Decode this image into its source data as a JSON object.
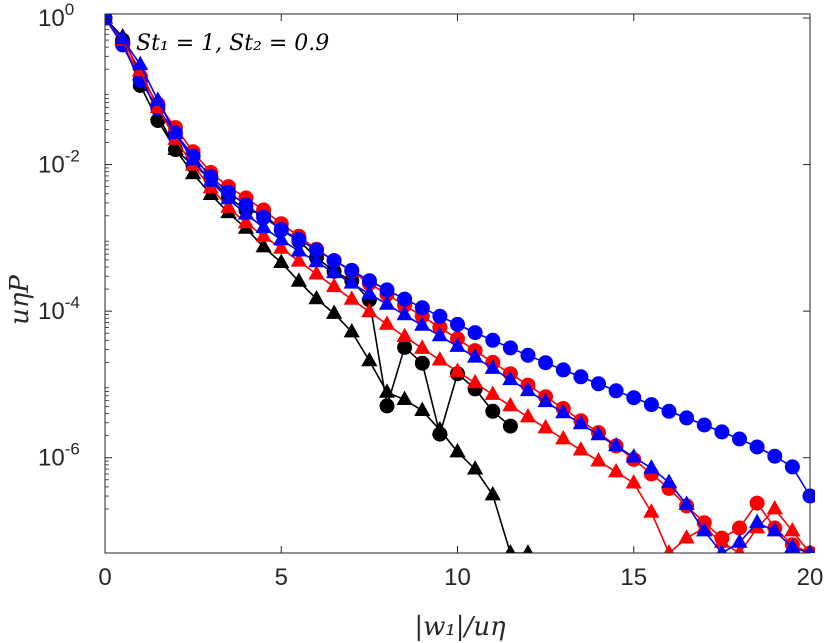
{
  "chart_data": {
    "type": "line",
    "title": "",
    "annotation": "St₁ = 1, St₂ = 0.9",
    "xlabel": "|w₁|/uη",
    "ylabel": "uηP",
    "xlim": [
      0,
      20
    ],
    "ylim_log10": [
      -7.3,
      0
    ],
    "yscale": "log",
    "grid": false,
    "x_ticks": [
      0,
      5,
      10,
      15,
      20
    ],
    "x_tick_labels": [
      "0",
      "5",
      "10",
      "15",
      "20"
    ],
    "y_ticks_log10": [
      0,
      -2,
      -4,
      -6
    ],
    "y_tick_labels": [
      {
        "base": "10",
        "exp": "0"
      },
      {
        "base": "10",
        "exp": "-2"
      },
      {
        "base": "10",
        "exp": "-4"
      },
      {
        "base": "10",
        "exp": "-6"
      }
    ],
    "series": [
      {
        "name": "black-triangles",
        "color": "#000000",
        "marker": "triangle",
        "x": [
          0,
          0.5,
          1,
          1.5,
          2,
          2.5,
          3,
          3.5,
          4,
          4.5,
          5,
          5.5,
          6,
          6.5,
          7,
          7.5,
          8,
          8.5,
          9,
          9.5,
          10,
          10.5,
          11,
          11.5,
          12
        ],
        "y": [
          1.0,
          0.55,
          0.17,
          0.048,
          0.016,
          0.0075,
          0.0039,
          0.0022,
          0.00135,
          0.00075,
          0.00046,
          0.000255,
          0.000147,
          9.3e-05,
          5.2e-05,
          2.1e-05,
          7.8e-06,
          6.2e-06,
          4.4e-06,
          2.4e-06,
          1.2e-06,
          7e-07,
          3.1e-07,
          5e-08,
          5e-08
        ]
      },
      {
        "name": "black-circles",
        "color": "#000000",
        "marker": "circle",
        "x": [
          0.5,
          1,
          1.5,
          2,
          2.5,
          3,
          3.5,
          4,
          4.5,
          5,
          5.5,
          6,
          6.5,
          7,
          7.5,
          8,
          8.5,
          9,
          9.5,
          10,
          10.5,
          11,
          11.5
        ],
        "y": [
          0.5,
          0.12,
          0.04,
          0.016,
          0.0097,
          0.0065,
          0.0036,
          0.0024,
          0.0021,
          0.00128,
          0.00091,
          0.00054,
          0.00035,
          0.00026,
          0.000143,
          5.1e-06,
          3.2e-05,
          1.95e-05,
          2.1e-06,
          1.4e-05,
          8.7e-06,
          4.3e-06,
          2.7e-06
        ]
      },
      {
        "name": "red-circles",
        "color": "#ff0000",
        "marker": "circle",
        "x": [
          0,
          0.5,
          1,
          1.5,
          2,
          2.5,
          3,
          3.5,
          4,
          4.5,
          5,
          5.5,
          6,
          6.5,
          7,
          7.5,
          8,
          8.5,
          9,
          9.5,
          10,
          10.5,
          11,
          11.5,
          12,
          12.5,
          13,
          13.5,
          14,
          14.5,
          15,
          15.5,
          16,
          16.5,
          17,
          17.5,
          18,
          18.5,
          19,
          19.5,
          20
        ],
        "y": [
          1.0,
          0.44,
          0.16,
          0.067,
          0.032,
          0.015,
          0.0078,
          0.005,
          0.0035,
          0.0024,
          0.00156,
          0.00105,
          0.0007,
          0.00049,
          0.00035,
          0.00024,
          0.00017,
          0.00012,
          8.5e-05,
          6e-05,
          4.2e-05,
          2.9e-05,
          2e-05,
          1.4e-05,
          9.8e-06,
          6.8e-06,
          4.7e-06,
          3.2e-06,
          2.2e-06,
          1.45e-06,
          9.5e-07,
          6e-07,
          3.8e-07,
          2.2e-07,
          1.3e-07,
          8e-08,
          1.1e-07,
          2.4e-07,
          1.1e-07,
          6.5e-08,
          5e-08
        ]
      },
      {
        "name": "blue-circles",
        "color": "#0000ff",
        "marker": "circle",
        "x": [
          0,
          0.5,
          1,
          1.5,
          2,
          2.5,
          3,
          3.5,
          4,
          4.5,
          5,
          5.5,
          6,
          6.5,
          7,
          7.5,
          8,
          8.5,
          9,
          9.5,
          10,
          10.5,
          11,
          11.5,
          12,
          12.5,
          13,
          13.5,
          14,
          14.5,
          15,
          15.5,
          16,
          16.5,
          17,
          17.5,
          18,
          18.5,
          19,
          19.5,
          20
        ],
        "y": [
          1.0,
          0.43,
          0.14,
          0.058,
          0.027,
          0.013,
          0.0068,
          0.0042,
          0.0028,
          0.0019,
          0.0013,
          0.00095,
          0.00068,
          0.00049,
          0.00036,
          0.00026,
          0.000195,
          0.000146,
          0.000111,
          8.5e-05,
          6.6e-05,
          5.1e-05,
          4e-05,
          3.15e-05,
          2.5e-05,
          1.98e-05,
          1.58e-05,
          1.27e-05,
          1.02e-05,
          8.2e-06,
          6.6e-06,
          5.3e-06,
          4.3e-06,
          3.5e-06,
          2.8e-06,
          2.25e-06,
          1.8e-06,
          1.4e-06,
          1.05e-06,
          7.5e-07,
          3e-07
        ]
      },
      {
        "name": "red-triangles",
        "color": "#ff0000",
        "marker": "triangle",
        "x": [
          0,
          0.5,
          1,
          1.5,
          2,
          2.5,
          3,
          3.5,
          4,
          4.5,
          5,
          5.5,
          6,
          6.5,
          7,
          7.5,
          8,
          8.5,
          9,
          9.5,
          10,
          10.5,
          11,
          11.5,
          12,
          12.5,
          13,
          13.5,
          14,
          14.5,
          15,
          15.5,
          16,
          16.5,
          17,
          17.5,
          18,
          18.5,
          19,
          19.5,
          20
        ],
        "y": [
          1.0,
          0.5,
          0.19,
          0.06,
          0.022,
          0.0098,
          0.0048,
          0.0026,
          0.0016,
          0.00105,
          0.00072,
          0.00048,
          0.00032,
          0.000215,
          0.000145,
          9.8e-05,
          6.6e-05,
          4.5e-05,
          3.1e-05,
          2.15e-05,
          1.5e-05,
          1.05e-05,
          7.3e-06,
          5.1e-06,
          3.6e-06,
          2.55e-06,
          1.8e-06,
          1.27e-06,
          9e-07,
          6.4e-07,
          4.5e-07,
          1.8e-07,
          5e-08,
          8e-08,
          1.1e-07,
          7e-08,
          5e-08,
          1.1e-07,
          2e-07,
          1e-07,
          5e-08
        ]
      },
      {
        "name": "blue-triangles",
        "color": "#0000ff",
        "marker": "triangle",
        "x": [
          0,
          0.5,
          1,
          1.5,
          2,
          2.5,
          3,
          3.5,
          4,
          4.5,
          5,
          5.5,
          6,
          6.5,
          7,
          7.5,
          8,
          8.5,
          9,
          9.5,
          10,
          10.5,
          11,
          11.5,
          12,
          12.5,
          13,
          13.5,
          14,
          14.5,
          15,
          15.5,
          16,
          16.5,
          17,
          17.5,
          18,
          18.5,
          19,
          19.5,
          20
        ],
        "y": [
          1.0,
          0.52,
          0.23,
          0.075,
          0.0265,
          0.0115,
          0.0059,
          0.0034,
          0.0021,
          0.00138,
          0.00094,
          0.00066,
          0.00047,
          0.000335,
          0.00024,
          0.000172,
          0.000124,
          8.9e-05,
          6.4e-05,
          4.6e-05,
          3.3e-05,
          2.35e-05,
          1.65e-05,
          1.16e-05,
          8.2e-06,
          5.8e-06,
          4.1e-06,
          2.9e-06,
          2.05e-06,
          1.45e-06,
          1.02e-06,
          7.2e-07,
          4.6e-07,
          2.3e-07,
          1e-07,
          5e-08,
          7e-08,
          1.3e-07,
          1e-07,
          6e-08,
          5e-08
        ]
      }
    ]
  }
}
